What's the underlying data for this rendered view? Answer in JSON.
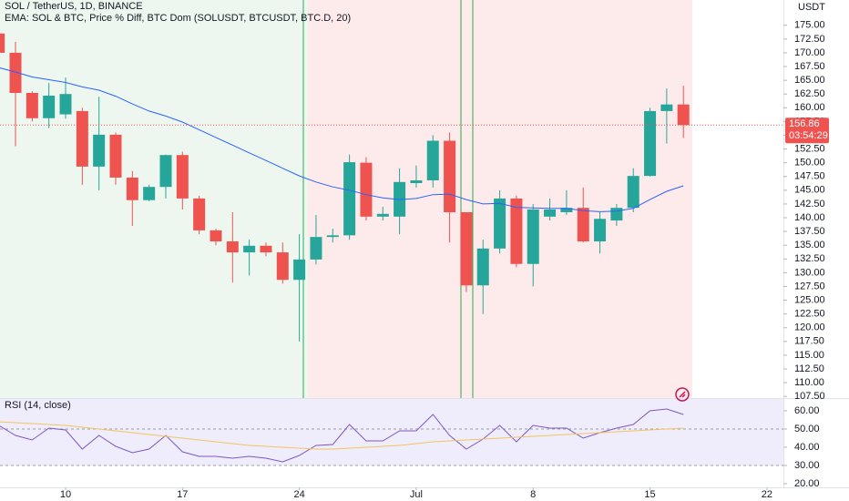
{
  "chart_data": [
    {
      "type": "candlestick",
      "title": "SOL / TetherUS, 1D, BINANCE",
      "axis_label": "USDT",
      "countdown": "03:54:29",
      "categories": [
        null,
        null,
        null,
        null,
        "10",
        null,
        null,
        null,
        null,
        null,
        null,
        "17",
        null,
        null,
        null,
        null,
        null,
        null,
        "24",
        null,
        null,
        null,
        null,
        null,
        null,
        "Jul",
        null,
        null,
        null,
        null,
        null,
        null,
        "8",
        null,
        null,
        null,
        null,
        null,
        null,
        "15",
        null,
        null,
        null,
        null,
        null,
        null,
        "22"
      ],
      "open": [
        173.5,
        170,
        162.7,
        158.1,
        158.8,
        159.4,
        149.3,
        155.1,
        147.3,
        143.2,
        145.6,
        151.4,
        143.5,
        137.7,
        135.7,
        133.7,
        134.9,
        133.7,
        128.7,
        132.4,
        136.5,
        136.8,
        150,
        140.2,
        140.2,
        146.3,
        146.8,
        154,
        141,
        127.7,
        134.4,
        143.5,
        131.6,
        140.2,
        141,
        141.8,
        135.7,
        139.5,
        141.8,
        147.6,
        159.4,
        160.6,
        null,
        null,
        null,
        null,
        null
      ],
      "high": [
        175,
        172,
        163,
        164.5,
        165.5,
        160,
        162,
        155.5,
        148.5,
        146,
        151.5,
        152,
        144,
        138,
        141,
        136,
        135.5,
        135.5,
        137,
        140.5,
        138,
        151.5,
        151,
        142,
        149,
        149.5,
        155,
        155.5,
        141,
        136,
        145,
        144,
        142.5,
        143.5,
        145,
        145.5,
        141,
        142.5,
        149,
        160,
        163.5,
        164,
        null,
        null,
        null,
        null,
        null
      ],
      "low": [
        169.5,
        153,
        157.5,
        156.3,
        158,
        146,
        145,
        146,
        138.5,
        143,
        143.5,
        141.5,
        137,
        135,
        128.2,
        129.5,
        133,
        128,
        117.5,
        131.5,
        135.5,
        136,
        139.5,
        139.5,
        137,
        145.5,
        145.5,
        135.5,
        126.5,
        122.5,
        133.5,
        131,
        127.5,
        139.5,
        140.5,
        135.5,
        133.5,
        138.5,
        141,
        147.5,
        153.5,
        154.5,
        null,
        null,
        null,
        null,
        null
      ],
      "close": [
        170,
        162.7,
        158.1,
        162.2,
        162.5,
        149.3,
        155.1,
        147.3,
        143.2,
        145.6,
        151.4,
        143.5,
        137.7,
        135.7,
        133.7,
        134.9,
        133.7,
        128.7,
        132.4,
        136.5,
        136.8,
        150.1,
        140.2,
        140.7,
        146.5,
        146.8,
        154,
        141,
        127.7,
        134.4,
        143.5,
        131.6,
        141.5,
        141.5,
        141.8,
        135.7,
        139.8,
        141.8,
        147.6,
        159.4,
        160.6,
        156.86,
        null,
        null,
        null,
        null,
        null
      ],
      "up_color": "#26a69a",
      "down_color": "#ef5350",
      "overlays": [
        {
          "name": "EMA: SOL & BTC, Price % Diff, BTC Dom (SOLUSDT, BTCUSDT, BTC.D, 20)",
          "color": "#2962ff",
          "values": [
            167.3,
            166.5,
            165.6,
            165.1,
            164.6,
            163.8,
            163.2,
            162.1,
            160.7,
            159.4,
            158.5,
            157.4,
            156,
            154.6,
            153.2,
            151.8,
            150.4,
            149,
            147.6,
            146.5,
            145.6,
            145,
            144.2,
            143.6,
            143.3,
            143.5,
            144.2,
            144.3,
            143.3,
            142.5,
            142.6,
            141.9,
            141.8,
            141.7,
            141.7,
            141.3,
            141.1,
            141.2,
            141.7,
            143.3,
            144.8,
            145.8,
            null,
            null,
            null,
            null,
            null
          ]
        }
      ],
      "ylim": [
        107.2,
        179.6
      ],
      "yticks": [
        {
          "value": 107.5,
          "label": "107.50"
        },
        {
          "value": 110,
          "label": "110.00"
        },
        {
          "value": 112.5,
          "label": "112.50"
        },
        {
          "value": 115,
          "label": "115.00"
        },
        {
          "value": 117.5,
          "label": "117.50"
        },
        {
          "value": 120,
          "label": "120.00"
        },
        {
          "value": 122.5,
          "label": "122.50"
        },
        {
          "value": 125,
          "label": "125.00"
        },
        {
          "value": 127.5,
          "label": "127.50"
        },
        {
          "value": 130,
          "label": "130.00"
        },
        {
          "value": 132.5,
          "label": "132.50"
        },
        {
          "value": 135,
          "label": "135.00"
        },
        {
          "value": 137.5,
          "label": "137.50"
        },
        {
          "value": 140,
          "label": "140.00"
        },
        {
          "value": 142.5,
          "label": "142.50"
        },
        {
          "value": 145,
          "label": "145.00"
        },
        {
          "value": 147.5,
          "label": "147.50"
        },
        {
          "value": 150,
          "label": "150.00"
        },
        {
          "value": 152.5,
          "label": "152.50"
        },
        {
          "value": 155,
          "label": "155.00"
        },
        {
          "value": 157.5,
          "label": "157.50"
        },
        {
          "value": 160,
          "label": "160.00"
        },
        {
          "value": 162.5,
          "label": "162.50"
        },
        {
          "value": 165,
          "label": "165.00"
        },
        {
          "value": 167.5,
          "label": "167.50"
        },
        {
          "value": 170,
          "label": "170.00"
        },
        {
          "value": 172.5,
          "label": "172.50"
        },
        {
          "value": 175,
          "label": "175.00"
        }
      ]
    },
    {
      "type": "line",
      "title": "RSI (14, close)",
      "series": [
        {
          "name": null,
          "color": "#7e57c2",
          "values": [
            52,
            46.5,
            44,
            50.5,
            49.5,
            39,
            46.5,
            40.5,
            37,
            39,
            46.5,
            37.5,
            35,
            35,
            34,
            35,
            34,
            32,
            35.5,
            41,
            41.5,
            52.5,
            43.5,
            43.5,
            49,
            49,
            58,
            46.5,
            39,
            44.5,
            52,
            43,
            52,
            50.5,
            50.5,
            45,
            48,
            50.5,
            52.5,
            60,
            61,
            58,
            null,
            null,
            null,
            null,
            null
          ]
        },
        {
          "name": null,
          "color": "#f2c55c",
          "values": [
            54,
            53.5,
            53,
            52.5,
            52,
            51,
            50,
            49,
            48,
            47,
            46,
            45,
            44,
            43,
            42,
            41,
            40.5,
            40,
            39.5,
            39,
            39,
            39.5,
            40,
            40.5,
            41,
            42,
            43,
            43.5,
            44,
            44.5,
            45,
            45.5,
            46,
            46.5,
            47,
            47.5,
            48,
            48.5,
            49,
            49.5,
            50,
            50.5,
            null,
            null,
            null,
            null,
            null
          ]
        }
      ],
      "ylim": [
        19,
        66.5
      ],
      "yticks": [
        {
          "value": 20,
          "label": "20.00"
        },
        {
          "value": 30,
          "label": "30.00"
        },
        {
          "value": 40,
          "label": "40.00"
        },
        {
          "value": 50,
          "label": "50.00"
        },
        {
          "value": 60,
          "label": "60.00"
        }
      ]
    }
  ]
}
